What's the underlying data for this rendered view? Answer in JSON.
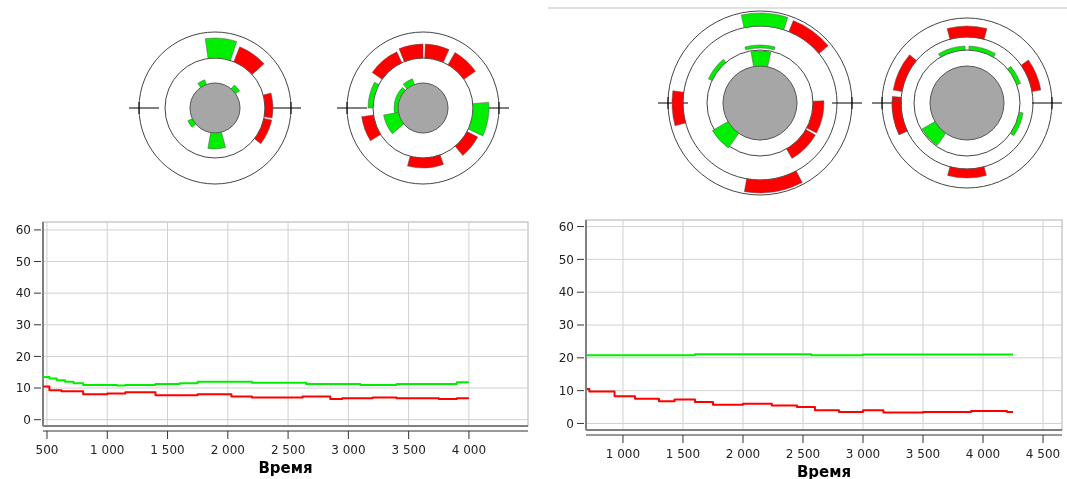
{
  "chart_data": [
    {
      "type": "step",
      "xlabel": "Время",
      "xlim": [
        467,
        4490
      ],
      "ylim": [
        -2,
        62.5
      ],
      "xticks": [
        {
          "value": 500,
          "label": "500"
        },
        {
          "value": 1000,
          "label": "1 000"
        },
        {
          "value": 1500,
          "label": "1 500"
        },
        {
          "value": 2000,
          "label": "2 000"
        },
        {
          "value": 2500,
          "label": "2 500"
        },
        {
          "value": 3000,
          "label": "3 000"
        },
        {
          "value": 3500,
          "label": "3 500"
        },
        {
          "value": 4000,
          "label": "4 000"
        }
      ],
      "yticks": [
        0,
        10,
        20,
        30,
        40,
        50,
        60
      ],
      "grid": true,
      "series": [
        {
          "color": "#00ee00",
          "x": [
            467,
            520,
            580,
            650,
            720,
            800,
            900,
            1080,
            1150,
            1400,
            1600,
            1750,
            2200,
            2650,
            3100,
            3400,
            3900,
            4000
          ],
          "values": [
            13.5,
            13,
            12.5,
            12,
            11.5,
            11,
            11,
            10.8,
            11,
            11.3,
            11.5,
            12,
            11.7,
            11.3,
            11,
            11.3,
            11.8,
            11.8
          ]
        },
        {
          "color": "#ff0000",
          "x": [
            467,
            520,
            620,
            800,
            1000,
            1150,
            1400,
            1750,
            2030,
            2200,
            2400,
            2620,
            2850,
            2950,
            3200,
            3400,
            3750,
            3900,
            4000
          ],
          "values": [
            10.5,
            9.3,
            9,
            8,
            8.3,
            8.7,
            7.7,
            8,
            7.3,
            7,
            7,
            7.3,
            6.5,
            6.8,
            7,
            6.8,
            6.5,
            6.8,
            6.8
          ]
        }
      ]
    },
    {
      "type": "step",
      "xlabel": "Время",
      "xlim": [
        692,
        4658
      ],
      "ylim": [
        -2,
        62
      ],
      "xticks": [
        {
          "value": 1000,
          "label": "1 000"
        },
        {
          "value": 1500,
          "label": "1 500"
        },
        {
          "value": 2000,
          "label": "2 000"
        },
        {
          "value": 2500,
          "label": "2 500"
        },
        {
          "value": 3000,
          "label": "3 000"
        },
        {
          "value": 3500,
          "label": "3 500"
        },
        {
          "value": 4000,
          "label": "4 000"
        },
        {
          "value": 4500,
          "label": "4 500"
        }
      ],
      "yticks": [
        0,
        10,
        20,
        30,
        40,
        50,
        60
      ],
      "grid": true,
      "series": [
        {
          "color": "#00ee00",
          "x": [
            700,
            1600,
            2570,
            3000,
            4250
          ],
          "values": [
            20.8,
            21.1,
            20.8,
            21,
            21
          ]
        },
        {
          "color": "#ff0000",
          "x": [
            700,
            720,
            930,
            1100,
            1300,
            1430,
            1600,
            1750,
            2000,
            2240,
            2450,
            2600,
            2800,
            3000,
            3170,
            3500,
            3900,
            4200,
            4250
          ],
          "values": [
            10.5,
            9.7,
            8.3,
            7.5,
            6.8,
            7.3,
            6.5,
            5.7,
            6,
            5.5,
            5,
            4,
            3.5,
            4,
            3.3,
            3.5,
            3.8,
            3.5,
            3.5
          ]
        }
      ]
    }
  ]
}
